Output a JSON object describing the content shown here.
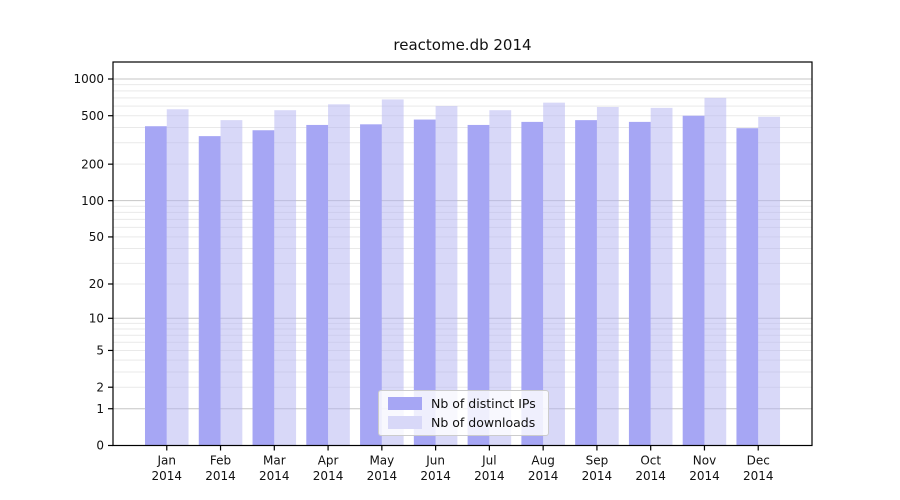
{
  "page": {
    "background": "#ffffff"
  },
  "chart_data": {
    "type": "bar",
    "title": "reactome.db 2014",
    "categories": [
      "Jan",
      "Feb",
      "Mar",
      "Apr",
      "May",
      "Jun",
      "Jul",
      "Aug",
      "Sep",
      "Oct",
      "Nov",
      "Dec"
    ],
    "category_year": "2014",
    "series": [
      {
        "name": "Nb of distinct IPs",
        "color": "#a6a6f4",
        "bar_fill": "#a6a6f4",
        "bar_opacity": 1,
        "values": [
          410,
          340,
          380,
          420,
          425,
          465,
          420,
          445,
          460,
          445,
          500,
          395
        ]
      },
      {
        "name": "Nb of downloads",
        "color": "#d8d8f8",
        "bar_fill": "#b1b1f1",
        "bar_opacity": 0.5,
        "values": [
          565,
          460,
          555,
          620,
          680,
          600,
          555,
          640,
          590,
          580,
          700,
          490
        ]
      }
    ],
    "y_axis": {
      "scale": "log10(value+1)",
      "ticks": [
        0,
        1,
        2,
        5,
        10,
        20,
        50,
        100,
        200,
        500,
        1000
      ],
      "minor_ticks": [
        3,
        4,
        6,
        7,
        8,
        9,
        30,
        40,
        60,
        70,
        80,
        90,
        300,
        400,
        600,
        700,
        800,
        900
      ],
      "decade_ticks": [
        1,
        10,
        100,
        1000
      ],
      "ylim": [
        0,
        1380
      ]
    },
    "grid": true,
    "legend_position": "inside-bottom-center",
    "colors": {
      "grid_major": "#c6c6c6",
      "grid_minor": "#e9e9e9",
      "axis": "#000000",
      "text": "#111111"
    }
  }
}
